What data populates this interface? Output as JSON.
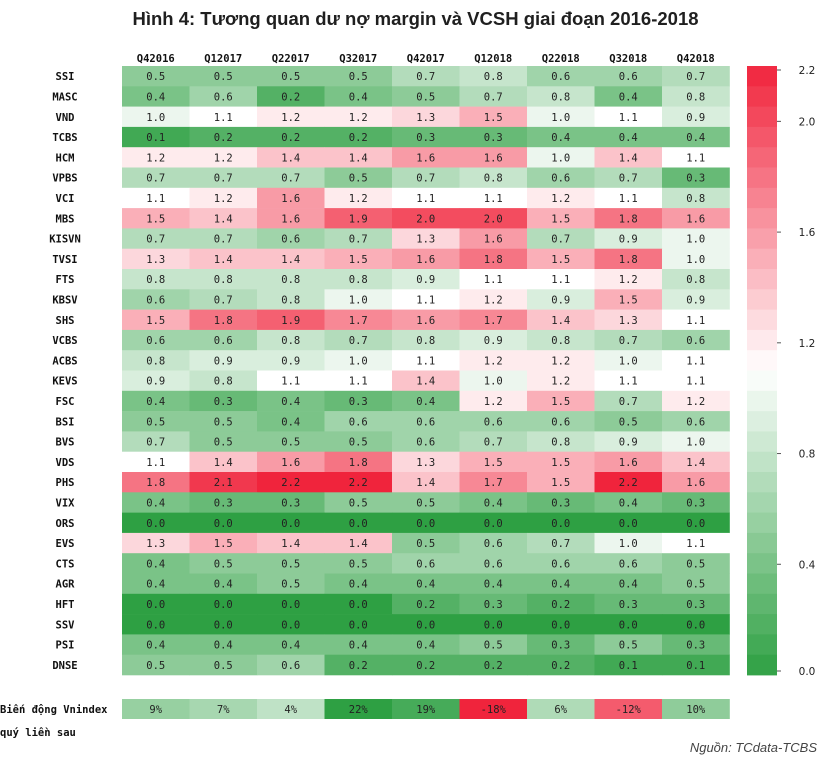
{
  "title": "Hình 4: Tương quan dư nợ margin và VCSH giai đoạn 2016-2018",
  "source": "Nguồn: TCdata-TCBS",
  "chart_data": {
    "type": "heatmap",
    "columns": [
      "Q42016",
      "Q12017",
      "Q22017",
      "Q32017",
      "Q42017",
      "Q12018",
      "Q22018",
      "Q32018",
      "Q42018"
    ],
    "rows": [
      "SSI",
      "MASC",
      "VND",
      "TCBS",
      "HCM",
      "VPBS",
      "VCI",
      "MBS",
      "KISVN",
      "TVSI",
      "FTS",
      "KBSV",
      "SHS",
      "VCBS",
      "ACBS",
      "KEVS",
      "FSC",
      "BSI",
      "BVS",
      "VDS",
      "PHS",
      "VIX",
      "ORS",
      "EVS",
      "CTS",
      "AGR",
      "HFT",
      "SSV",
      "PSI",
      "DNSE"
    ],
    "values": [
      [
        0.5,
        0.5,
        0.5,
        0.5,
        0.7,
        0.8,
        0.6,
        0.6,
        0.7
      ],
      [
        0.4,
        0.6,
        0.2,
        0.4,
        0.5,
        0.7,
        0.8,
        0.4,
        0.8
      ],
      [
        1.0,
        1.1,
        1.2,
        1.2,
        1.3,
        1.5,
        1.0,
        1.1,
        0.9
      ],
      [
        0.1,
        0.2,
        0.2,
        0.2,
        0.3,
        0.3,
        0.4,
        0.4,
        0.4
      ],
      [
        1.2,
        1.2,
        1.4,
        1.4,
        1.6,
        1.6,
        1.0,
        1.4,
        1.1
      ],
      [
        0.7,
        0.7,
        0.7,
        0.5,
        0.7,
        0.8,
        0.6,
        0.7,
        0.3
      ],
      [
        1.1,
        1.2,
        1.6,
        1.2,
        1.1,
        1.1,
        1.2,
        1.1,
        0.8
      ],
      [
        1.5,
        1.4,
        1.6,
        1.9,
        2.0,
        2.0,
        1.5,
        1.8,
        1.6
      ],
      [
        0.7,
        0.7,
        0.6,
        0.7,
        1.3,
        1.6,
        0.7,
        0.9,
        1.0
      ],
      [
        1.3,
        1.4,
        1.4,
        1.5,
        1.6,
        1.8,
        1.5,
        1.8,
        1.0
      ],
      [
        0.8,
        0.8,
        0.8,
        0.8,
        0.9,
        1.1,
        1.1,
        1.2,
        0.8
      ],
      [
        0.6,
        0.7,
        0.8,
        1.0,
        1.1,
        1.2,
        0.9,
        1.5,
        0.9
      ],
      [
        1.5,
        1.8,
        1.9,
        1.7,
        1.6,
        1.7,
        1.4,
        1.3,
        1.1
      ],
      [
        0.6,
        0.6,
        0.8,
        0.7,
        0.8,
        0.9,
        0.8,
        0.7,
        0.6
      ],
      [
        0.8,
        0.9,
        0.9,
        1.0,
        1.1,
        1.2,
        1.2,
        1.0,
        1.1
      ],
      [
        0.9,
        0.8,
        1.1,
        1.1,
        1.4,
        1.0,
        1.2,
        1.1,
        1.1
      ],
      [
        0.4,
        0.3,
        0.4,
        0.3,
        0.4,
        1.2,
        1.5,
        0.7,
        1.2
      ],
      [
        0.5,
        0.5,
        0.4,
        0.6,
        0.6,
        0.6,
        0.6,
        0.5,
        0.6
      ],
      [
        0.7,
        0.5,
        0.5,
        0.5,
        0.6,
        0.7,
        0.8,
        0.9,
        1.0
      ],
      [
        1.1,
        1.4,
        1.6,
        1.8,
        1.3,
        1.5,
        1.5,
        1.6,
        1.4
      ],
      [
        1.8,
        2.1,
        2.2,
        2.2,
        1.4,
        1.7,
        1.5,
        2.2,
        1.6
      ],
      [
        0.4,
        0.3,
        0.3,
        0.5,
        0.5,
        0.4,
        0.3,
        0.4,
        0.3
      ],
      [
        0.0,
        0.0,
        0.0,
        0.0,
        0.0,
        0.0,
        0.0,
        0.0,
        0.0
      ],
      [
        1.3,
        1.5,
        1.4,
        1.4,
        0.5,
        0.6,
        0.7,
        1.0,
        1.1
      ],
      [
        0.4,
        0.5,
        0.5,
        0.5,
        0.6,
        0.6,
        0.6,
        0.6,
        0.5
      ],
      [
        0.4,
        0.4,
        0.5,
        0.4,
        0.4,
        0.4,
        0.4,
        0.4,
        0.5
      ],
      [
        0.0,
        0.0,
        0.0,
        0.0,
        0.2,
        0.3,
        0.2,
        0.3,
        0.3
      ],
      [
        0.0,
        0.0,
        0.0,
        0.0,
        0.0,
        0.0,
        0.0,
        0.0,
        0.0
      ],
      [
        0.4,
        0.4,
        0.4,
        0.4,
        0.4,
        0.5,
        0.3,
        0.5,
        0.3
      ],
      [
        0.5,
        0.5,
        0.6,
        0.2,
        0.2,
        0.2,
        0.2,
        0.1,
        0.1
      ]
    ],
    "value_range": [
      0.0,
      2.2
    ],
    "colorbar_ticks": [
      0.0,
      0.4,
      0.8,
      1.2,
      1.6,
      2.0,
      2.2
    ],
    "colors": {
      "low": "#2ea043",
      "mid": "#ffffff",
      "high": "#f0243c"
    },
    "vnindex": {
      "label_line1": "Biến động Vnindex",
      "label_line2": "quý liền sau",
      "values": [
        "9%",
        "7%",
        "4%",
        "22%",
        "19%",
        "-18%",
        "6%",
        "-12%",
        "10%"
      ],
      "numeric": [
        9,
        7,
        4,
        22,
        19,
        -18,
        6,
        -12,
        10
      ]
    }
  }
}
